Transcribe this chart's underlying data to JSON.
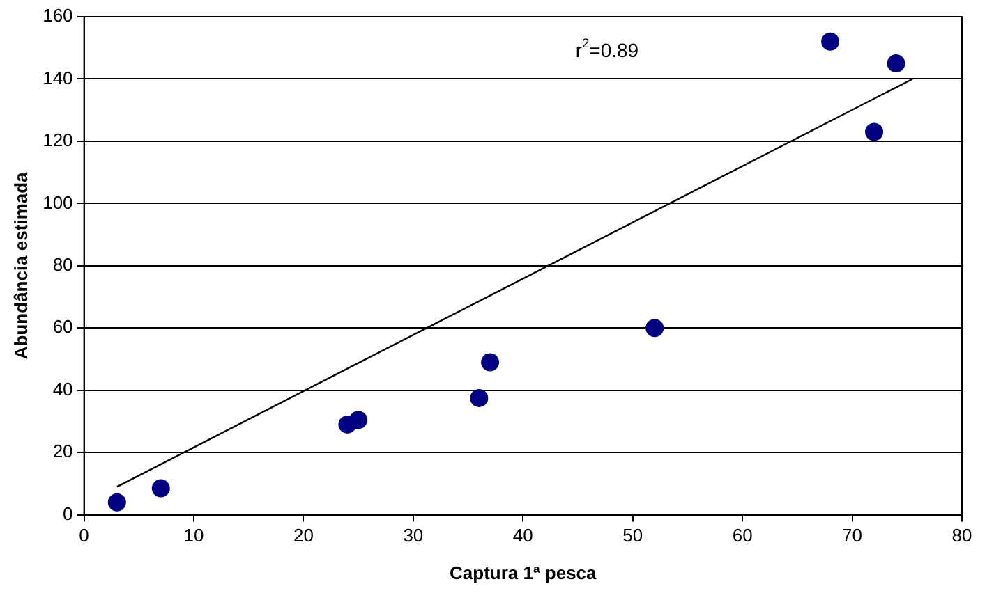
{
  "chart_data": {
    "type": "scatter",
    "xlabel": "Captura 1ª pesca",
    "ylabel": "Abundância estimada",
    "xlim": [
      0,
      80
    ],
    "xticks": [
      0,
      10,
      20,
      30,
      40,
      50,
      60,
      70,
      80
    ],
    "ylim": [
      0,
      160
    ],
    "yticks": [
      0,
      20,
      40,
      60,
      80,
      100,
      120,
      140,
      160
    ],
    "grid": "y",
    "legend": false,
    "marker": "circle",
    "annotations": [
      "r$^{2}$=0.89"
    ],
    "series": [
      {
        "type": "scatter",
        "color": "#000080",
        "x": [
          3,
          7,
          24,
          25,
          36,
          37,
          52,
          68,
          72,
          74
        ],
        "values": [
          4,
          8.5,
          29,
          30.5,
          37.5,
          49,
          60,
          152,
          123,
          145
        ]
      },
      {
        "type": "line",
        "color": "#000000",
        "x": [
          3,
          75.5
        ],
        "values": [
          9,
          140
        ],
        "marker": "none",
        "line_style": "solid"
      }
    ]
  }
}
